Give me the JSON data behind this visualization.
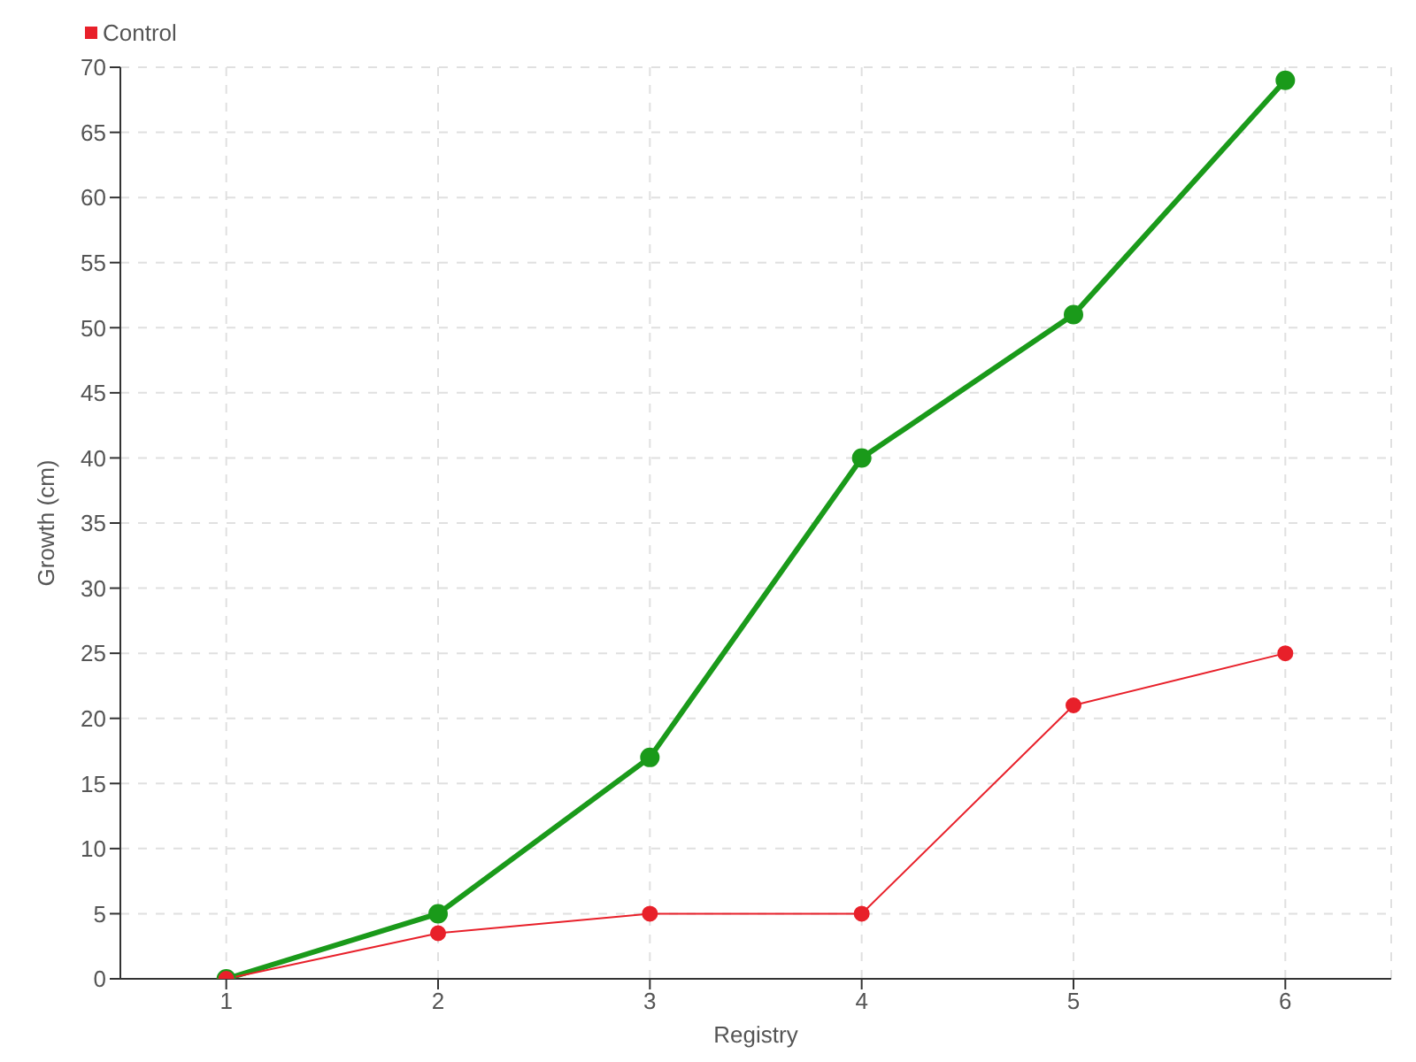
{
  "chart_data": {
    "type": "line",
    "xlabel": "Registry",
    "ylabel": "Growth (cm)",
    "x": [
      1,
      2,
      3,
      4,
      5,
      6
    ],
    "series": [
      {
        "color": "#1a9a1a",
        "values": [
          0,
          5,
          17,
          40,
          51,
          69
        ]
      },
      {
        "name": "Control",
        "color": "#e8202a",
        "values": [
          0,
          3.5,
          5,
          5,
          21,
          25
        ]
      }
    ],
    "xlim": [
      0.5,
      6.5
    ],
    "xticks": [
      1,
      2,
      3,
      4,
      5,
      6
    ],
    "ylim": [
      0,
      70
    ],
    "yticks": [
      0,
      5,
      10,
      15,
      20,
      25,
      30,
      35,
      40,
      45,
      50,
      55,
      60,
      65,
      70
    ],
    "grid": true,
    "legend": "top left",
    "marker": "circle"
  }
}
